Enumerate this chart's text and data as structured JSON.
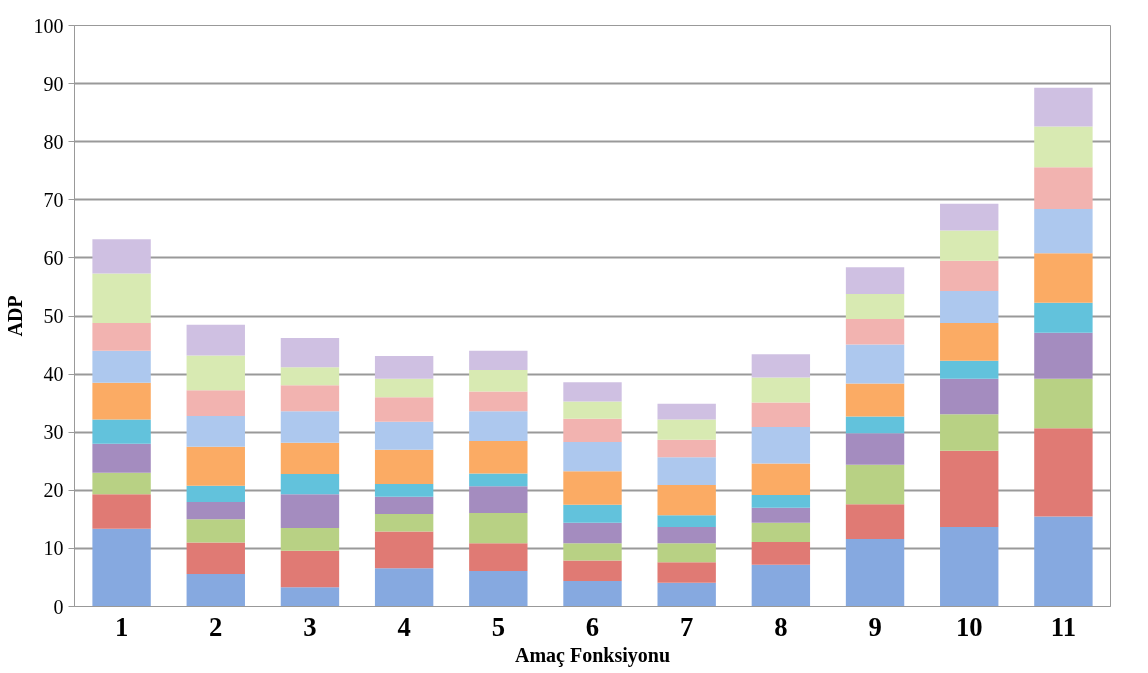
{
  "chart_data": {
    "type": "bar",
    "stacked": true,
    "xlabel": "Amaç Fonksiyonu",
    "ylabel": "ADP",
    "categories": [
      "1",
      "2",
      "3",
      "4",
      "5",
      "6",
      "7",
      "8",
      "9",
      "10",
      "11"
    ],
    "ylim": [
      0,
      100
    ],
    "yticks": [
      0,
      10,
      20,
      30,
      40,
      50,
      60,
      70,
      80,
      90,
      100
    ],
    "grid": "y",
    "series": [
      {
        "color": "#86a9e0",
        "values": [
          13.4,
          5.6,
          3.3,
          6.6,
          6.1,
          4.4,
          4.1,
          7.2,
          11.6,
          13.7,
          15.5
        ]
      },
      {
        "color": "#e07a74",
        "values": [
          5.9,
          5.4,
          6.3,
          6.3,
          4.8,
          3.5,
          3.5,
          3.9,
          6.0,
          13.1,
          15.2
        ]
      },
      {
        "color": "#b8d184",
        "values": [
          3.7,
          4.0,
          3.9,
          3.0,
          5.2,
          3.0,
          3.3,
          3.3,
          6.8,
          6.3,
          8.5
        ]
      },
      {
        "color": "#a48cbf",
        "values": [
          5.0,
          3.0,
          5.8,
          3.0,
          4.6,
          3.5,
          2.8,
          2.6,
          5.4,
          6.1,
          7.9
        ]
      },
      {
        "color": "#62c2dc",
        "values": [
          4.2,
          2.8,
          3.5,
          2.2,
          2.2,
          3.1,
          2.0,
          2.2,
          2.9,
          3.1,
          5.2
        ]
      },
      {
        "color": "#fbab64",
        "values": [
          6.3,
          6.7,
          5.4,
          5.9,
          5.6,
          5.8,
          5.2,
          5.4,
          5.7,
          6.5,
          8.5
        ]
      },
      {
        "color": "#adc8ee",
        "values": [
          5.5,
          5.3,
          5.4,
          4.8,
          5.1,
          5.0,
          4.8,
          6.3,
          6.7,
          5.5,
          7.6
        ]
      },
      {
        "color": "#f2b3b0",
        "values": [
          4.8,
          4.4,
          4.5,
          4.2,
          3.4,
          4.0,
          3.0,
          4.2,
          4.4,
          5.2,
          7.2
        ]
      },
      {
        "color": "#d8eab2",
        "values": [
          8.5,
          6.0,
          3.1,
          3.2,
          3.7,
          3.0,
          3.5,
          4.3,
          4.3,
          5.2,
          7.0
        ]
      },
      {
        "color": "#cfc0e2",
        "values": [
          5.9,
          5.3,
          5.0,
          3.9,
          3.3,
          3.3,
          2.7,
          4.0,
          4.6,
          4.6,
          6.7
        ]
      }
    ]
  }
}
